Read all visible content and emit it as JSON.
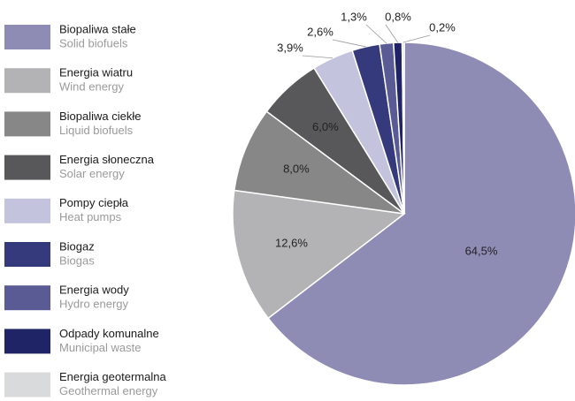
{
  "chart_data": {
    "type": "pie",
    "categories": [
      "Biopaliwa stałe",
      "Energia wiatru",
      "Biopaliwa ciekłe",
      "Energia słoneczna",
      "Pompy ciepła",
      "Biogaz",
      "Energia wody",
      "Odpady komunalne",
      "Energia geotermalna"
    ],
    "categories_en": [
      "Solid biofuels",
      "Wind energy",
      "Liquid biofuels",
      "Solar energy",
      "Heat pumps",
      "Biogas",
      "Hydro energy",
      "Municipal waste",
      "Geothermal energy"
    ],
    "values": [
      64.5,
      12.6,
      8.0,
      6.0,
      3.9,
      2.6,
      1.3,
      0.8,
      0.2
    ],
    "value_labels": [
      "64,5%",
      "12,6%",
      "8,0%",
      "6,0%",
      "3,9%",
      "2,6%",
      "1,3%",
      "0,8%",
      "0,2%"
    ],
    "colors": [
      "#8e8bb5",
      "#b3b3b6",
      "#878787",
      "#58585a",
      "#c4c3dd",
      "#343a7c",
      "#5a5a94",
      "#1f2466",
      "#d9dadb"
    ]
  }
}
